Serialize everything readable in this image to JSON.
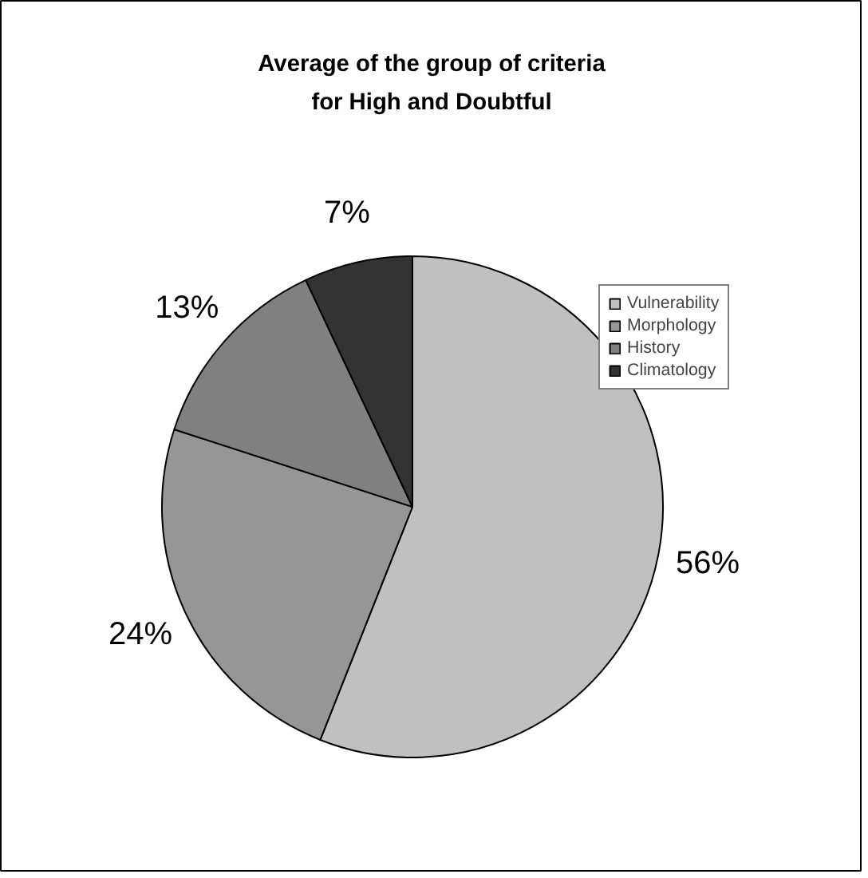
{
  "chart_data": {
    "type": "pie",
    "title": "Average of the group of criteria\nfor High and Doubtful",
    "categories": [
      "Vulnerability",
      "Morphology",
      "History",
      "Climatology"
    ],
    "values": [
      56,
      24,
      13,
      7
    ],
    "colors": [
      "#c0c0c0",
      "#969696",
      "#808080",
      "#333333"
    ],
    "value_labels": [
      "56%",
      "24%",
      "13%",
      "7%"
    ],
    "legend": "top right"
  }
}
